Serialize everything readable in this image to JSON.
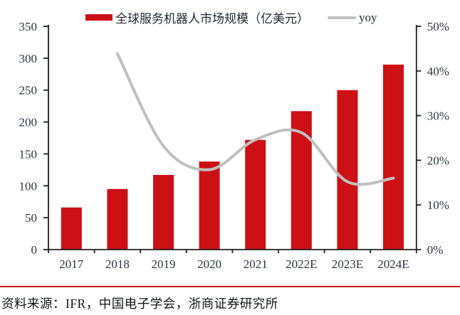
{
  "source_note": "资料来源：IFR，中国电子学会，浙商证券研究所",
  "colors": {
    "bar": "#cc1016",
    "line": "#bfbfbf",
    "divider": "#c00000",
    "axis": "#1f1f1f",
    "text": "#2b3442"
  },
  "chart_data": {
    "type": "bar",
    "subtype": "bar+line combo, secondary percent axis",
    "title": "",
    "categories": [
      "2017",
      "2018",
      "2019",
      "2020",
      "2021",
      "2022E",
      "2023E",
      "2024E"
    ],
    "series": [
      {
        "name": "全球服务机器人市场规模（亿美元）",
        "type": "bar",
        "axis": "left",
        "color": "#cc1016",
        "values": [
          66,
          95,
          117,
          138,
          172,
          217,
          250,
          290
        ]
      },
      {
        "name": "yoy",
        "type": "line",
        "axis": "right",
        "color": "#bfbfbf",
        "smooth": true,
        "values": [
          null,
          43.9,
          23.2,
          17.9,
          24.6,
          26.2,
          15.2,
          16.0
        ],
        "unit": "%"
      }
    ],
    "left_axis": {
      "min": 0,
      "max": 350,
      "step": 50,
      "ticks": [
        "0",
        "50",
        "100",
        "150",
        "200",
        "250",
        "300",
        "350"
      ]
    },
    "right_axis": {
      "min": 0,
      "max": 50,
      "step": 10,
      "ticks": [
        "0%",
        "10%",
        "20%",
        "30%",
        "40%",
        "50%"
      ]
    },
    "grid": false,
    "legend_position": "top"
  }
}
